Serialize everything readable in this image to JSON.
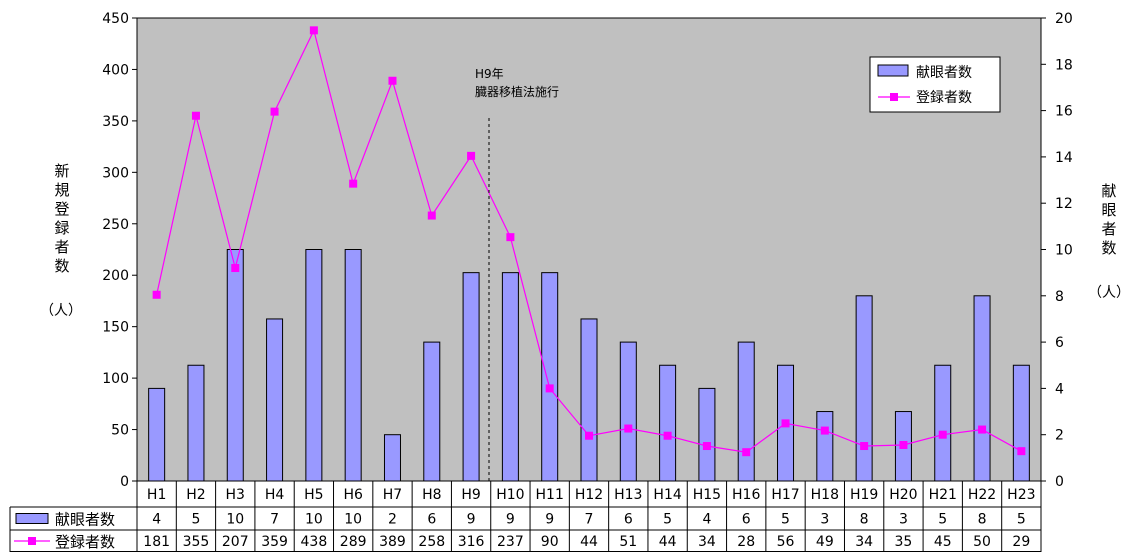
{
  "chart_data": {
    "type": "bar",
    "categories": [
      "H1",
      "H2",
      "H3",
      "H4",
      "H5",
      "H6",
      "H7",
      "H8",
      "H9",
      "H10",
      "H11",
      "H12",
      "H13",
      "H14",
      "H15",
      "H16",
      "H17",
      "H18",
      "H19",
      "H20",
      "H21",
      "H22",
      "H23"
    ],
    "series": [
      {
        "name": "献眼者数",
        "type": "bar",
        "axis": "right",
        "color": "#9999ff",
        "values": [
          4,
          5,
          10,
          7,
          10,
          10,
          2,
          6,
          9,
          9,
          9,
          7,
          6,
          5,
          4,
          6,
          5,
          3,
          8,
          3,
          5,
          8,
          5
        ]
      },
      {
        "name": "登録者数",
        "type": "line",
        "axis": "left",
        "color": "#ff00ff",
        "values": [
          181,
          355,
          207,
          359,
          438,
          289,
          389,
          258,
          316,
          237,
          90,
          44,
          51,
          44,
          34,
          28,
          56,
          49,
          34,
          35,
          45,
          50,
          29
        ]
      }
    ],
    "ylabel": "新規登録者数",
    "ylabel_unit": "（人）",
    "y2label": "献眼者数",
    "y2label_unit": "（人）",
    "ylim": [
      0,
      450
    ],
    "y_ticks": [
      "0",
      "50",
      "100",
      "150",
      "200",
      "250",
      "300",
      "350",
      "400",
      "450"
    ],
    "y2lim": [
      0,
      20
    ],
    "y2_ticks": [
      "0",
      "2",
      "4",
      "6",
      "8",
      "10",
      "12",
      "14",
      "16",
      "18",
      "20"
    ],
    "annotation": {
      "lines": [
        "H9年",
        "臓器移植法施行"
      ],
      "between": [
        "H9",
        "H10"
      ]
    },
    "legend_position": "top-right",
    "plot_background": "#c0c0c0",
    "grid": false
  }
}
